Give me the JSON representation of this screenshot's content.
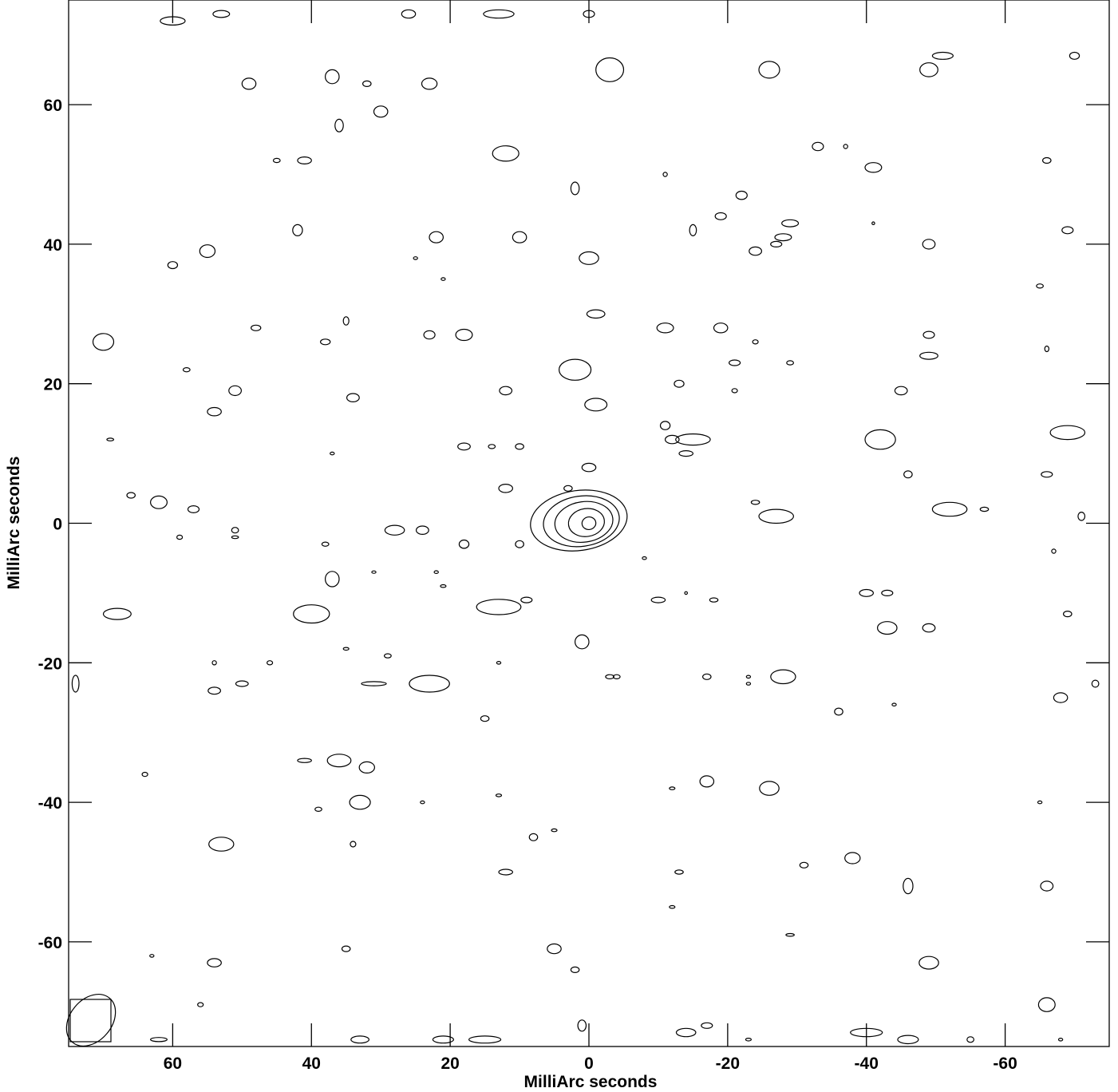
{
  "chart_data": {
    "type": "contour",
    "title": "",
    "xlabel": "MilliArc seconds",
    "ylabel": "MilliArc seconds",
    "xlim": [
      75,
      -75
    ],
    "ylim": [
      -75,
      75
    ],
    "x_ticks": [
      60,
      40,
      20,
      0,
      -20,
      -40,
      -60
    ],
    "y_ticks": [
      60,
      40,
      20,
      0,
      -20,
      -40,
      -60
    ],
    "x_tick_labels": [
      "60",
      "40",
      "20",
      "0",
      "-20",
      "-40",
      "-60"
    ],
    "y_tick_labels": [
      "60",
      "40",
      "20",
      "0",
      "-20",
      "-40",
      "-60"
    ],
    "grid": false,
    "core": {
      "x": 0,
      "y": 0,
      "contours": [
        {
          "rx": 1.0,
          "ry": 0.9
        },
        {
          "rx": 2.6,
          "ry": 2.0
        },
        {
          "rx": 4.2,
          "ry": 2.9
        },
        {
          "rx": 5.5,
          "ry": 3.6
        },
        {
          "rx": 7.0,
          "ry": 4.3
        }
      ]
    },
    "beam": {
      "major": 5.5,
      "minor": 3.0,
      "pa_deg": 40
    },
    "noise_contours": [
      [
        60,
        72,
        1.8,
        0.6
      ],
      [
        53,
        73,
        1.2,
        0.5
      ],
      [
        26,
        73,
        1.0,
        0.6
      ],
      [
        13,
        73,
        2.2,
        0.6
      ],
      [
        0,
        73,
        0.8,
        0.5
      ],
      [
        -3,
        65,
        2.0,
        1.7
      ],
      [
        49,
        63,
        1.0,
        0.8
      ],
      [
        37,
        64,
        1.0,
        1.0
      ],
      [
        32,
        63,
        0.6,
        0.4
      ],
      [
        23,
        63,
        1.1,
        0.8
      ],
      [
        -26,
        65,
        1.5,
        1.2
      ],
      [
        -49,
        65,
        1.3,
        1.0
      ],
      [
        -51,
        67,
        1.5,
        0.5
      ],
      [
        -70,
        67,
        0.7,
        0.5
      ],
      [
        30,
        59,
        1.0,
        0.8
      ],
      [
        36,
        57,
        0.6,
        0.9
      ],
      [
        12,
        53,
        1.9,
        1.1
      ],
      [
        45,
        52,
        0.5,
        0.3
      ],
      [
        41,
        52,
        1.0,
        0.5
      ],
      [
        -11,
        50,
        0.3,
        0.3
      ],
      [
        -41,
        51,
        1.2,
        0.7
      ],
      [
        -66,
        52,
        0.6,
        0.4
      ],
      [
        2,
        48,
        0.6,
        0.9
      ],
      [
        -22,
        47,
        0.8,
        0.6
      ],
      [
        -37,
        54,
        0.3,
        0.3
      ],
      [
        -33,
        54,
        0.8,
        0.6
      ],
      [
        42,
        42,
        0.7,
        0.8
      ],
      [
        22,
        41,
        1.0,
        0.8
      ],
      [
        10,
        41,
        1.0,
        0.8
      ],
      [
        -15,
        42,
        0.5,
        0.8
      ],
      [
        -19,
        44,
        0.8,
        0.5
      ],
      [
        -29,
        43,
        1.2,
        0.5
      ],
      [
        -28,
        41,
        1.2,
        0.5
      ],
      [
        -27,
        40,
        0.8,
        0.4
      ],
      [
        55,
        39,
        1.1,
        0.9
      ],
      [
        -24,
        39,
        0.9,
        0.6
      ],
      [
        -49,
        40,
        0.9,
        0.7
      ],
      [
        -69,
        42,
        0.8,
        0.5
      ],
      [
        0,
        38,
        1.4,
        0.9
      ],
      [
        60,
        37,
        0.7,
        0.5
      ],
      [
        25,
        38,
        0.3,
        0.2
      ],
      [
        -41,
        43,
        0.2,
        0.2
      ],
      [
        -65,
        34,
        0.5,
        0.3
      ],
      [
        21,
        35,
        0.3,
        0.2
      ],
      [
        35,
        29,
        0.4,
        0.6
      ],
      [
        -1,
        30,
        1.3,
        0.6
      ],
      [
        48,
        28,
        0.7,
        0.4
      ],
      [
        -11,
        28,
        1.2,
        0.7
      ],
      [
        -19,
        28,
        1.0,
        0.7
      ],
      [
        18,
        27,
        1.2,
        0.8
      ],
      [
        23,
        27,
        0.8,
        0.6
      ],
      [
        -49,
        27,
        0.8,
        0.5
      ],
      [
        70,
        26,
        1.5,
        1.2
      ],
      [
        38,
        26,
        0.7,
        0.4
      ],
      [
        -24,
        26,
        0.4,
        0.3
      ],
      [
        -49,
        24,
        1.3,
        0.5
      ],
      [
        -66,
        25,
        0.3,
        0.4
      ],
      [
        -29,
        23,
        0.5,
        0.3
      ],
      [
        -21,
        23,
        0.8,
        0.4
      ],
      [
        2,
        22,
        2.3,
        1.5
      ],
      [
        58,
        22,
        0.5,
        0.3
      ],
      [
        51,
        19,
        0.9,
        0.7
      ],
      [
        54,
        16,
        1.0,
        0.6
      ],
      [
        34,
        18,
        0.9,
        0.6
      ],
      [
        12,
        19,
        0.9,
        0.6
      ],
      [
        -13,
        20,
        0.7,
        0.5
      ],
      [
        -21,
        19,
        0.4,
        0.3
      ],
      [
        -45,
        19,
        0.9,
        0.6
      ],
      [
        -1,
        17,
        1.6,
        0.9
      ],
      [
        -11,
        14,
        0.7,
        0.6
      ],
      [
        -15,
        12,
        2.5,
        0.8
      ],
      [
        -12,
        12,
        1.0,
        0.6
      ],
      [
        -42,
        12,
        2.2,
        1.4
      ],
      [
        -69,
        13,
        2.5,
        1.0
      ],
      [
        69,
        12,
        0.5,
        0.2
      ],
      [
        37,
        10,
        0.3,
        0.2
      ],
      [
        18,
        11,
        0.9,
        0.5
      ],
      [
        14,
        11,
        0.5,
        0.3
      ],
      [
        10,
        11,
        0.6,
        0.4
      ],
      [
        0,
        8,
        1.0,
        0.6
      ],
      [
        -14,
        10,
        1.0,
        0.4
      ],
      [
        -46,
        7,
        0.6,
        0.5
      ],
      [
        -66,
        7,
        0.8,
        0.4
      ],
      [
        12,
        5,
        1.0,
        0.6
      ],
      [
        3,
        5,
        0.6,
        0.4
      ],
      [
        -24,
        3,
        0.6,
        0.3
      ],
      [
        66,
        4,
        0.6,
        0.4
      ],
      [
        62,
        3,
        1.2,
        0.9
      ],
      [
        57,
        2,
        0.8,
        0.5
      ],
      [
        -27,
        1,
        2.5,
        1.0
      ],
      [
        -52,
        2,
        2.5,
        1.0
      ],
      [
        -57,
        2,
        0.6,
        0.3
      ],
      [
        -71,
        1,
        0.5,
        0.6
      ],
      [
        28,
        -1,
        1.4,
        0.7
      ],
      [
        24,
        -1,
        0.9,
        0.6
      ],
      [
        51,
        -1,
        0.5,
        0.4
      ],
      [
        51,
        -2,
        0.5,
        0.2
      ],
      [
        59,
        -2,
        0.4,
        0.3
      ],
      [
        18,
        -3,
        0.7,
        0.6
      ],
      [
        10,
        -3,
        0.6,
        0.5
      ],
      [
        38,
        -3,
        0.5,
        0.3
      ],
      [
        -67,
        -4,
        0.3,
        0.3
      ],
      [
        37,
        -8,
        1.0,
        1.1
      ],
      [
        31,
        -7,
        0.3,
        0.1
      ],
      [
        22,
        -7,
        0.3,
        0.2
      ],
      [
        21,
        -9,
        0.4,
        0.2
      ],
      [
        -8,
        -5,
        0.3,
        0.2
      ],
      [
        13,
        -12,
        3.2,
        1.1
      ],
      [
        9,
        -11,
        0.8,
        0.4
      ],
      [
        -10,
        -11,
        1.0,
        0.4
      ],
      [
        -14,
        -10,
        0.2,
        0.2
      ],
      [
        -18,
        -11,
        0.6,
        0.3
      ],
      [
        -40,
        -10,
        1.0,
        0.5
      ],
      [
        -43,
        -10,
        0.8,
        0.4
      ],
      [
        40,
        -13,
        2.6,
        1.3
      ],
      [
        68,
        -13,
        2.0,
        0.8
      ],
      [
        -43,
        -15,
        1.4,
        0.9
      ],
      [
        -49,
        -15,
        0.9,
        0.6
      ],
      [
        -69,
        -13,
        0.6,
        0.4
      ],
      [
        1,
        -17,
        1.0,
        1.0
      ],
      [
        35,
        -18,
        0.4,
        0.2
      ],
      [
        29,
        -19,
        0.5,
        0.3
      ],
      [
        13,
        -20,
        0.3,
        0.2
      ],
      [
        46,
        -20,
        0.4,
        0.3
      ],
      [
        54,
        -20,
        0.3,
        0.3
      ],
      [
        -28,
        -22,
        1.8,
        1.0
      ],
      [
        -17,
        -22,
        0.6,
        0.4
      ],
      [
        -23,
        -22,
        0.3,
        0.2
      ],
      [
        -23,
        -23,
        0.3,
        0.2
      ],
      [
        -3,
        -22,
        0.6,
        0.3
      ],
      [
        -4,
        -22,
        0.5,
        0.3
      ],
      [
        31,
        -23,
        1.8,
        0.3
      ],
      [
        23,
        -23,
        2.9,
        1.2
      ],
      [
        50,
        -23,
        0.9,
        0.4
      ],
      [
        54,
        -24,
        0.9,
        0.5
      ],
      [
        -68,
        -25,
        1.0,
        0.7
      ],
      [
        -73,
        -23,
        0.5,
        0.5
      ],
      [
        74,
        -23,
        0.5,
        1.2
      ],
      [
        -36,
        -27,
        0.6,
        0.5
      ],
      [
        -44,
        -26,
        0.3,
        0.2
      ],
      [
        15,
        -28,
        0.6,
        0.4
      ],
      [
        36,
        -34,
        1.7,
        0.9
      ],
      [
        41,
        -34,
        1.0,
        0.3
      ],
      [
        32,
        -35,
        1.1,
        0.8
      ],
      [
        64,
        -36,
        0.4,
        0.3
      ],
      [
        -17,
        -37,
        1.0,
        0.8
      ],
      [
        -12,
        -38,
        0.4,
        0.2
      ],
      [
        -26,
        -38,
        1.4,
        1.0
      ],
      [
        33,
        -40,
        1.5,
        1.0
      ],
      [
        13,
        -39,
        0.4,
        0.2
      ],
      [
        24,
        -40,
        0.3,
        0.2
      ],
      [
        -65,
        -40,
        0.3,
        0.2
      ],
      [
        39,
        -41,
        0.5,
        0.3
      ],
      [
        8,
        -45,
        0.6,
        0.5
      ],
      [
        5,
        -44,
        0.4,
        0.2
      ],
      [
        34,
        -46,
        0.4,
        0.4
      ],
      [
        53,
        -46,
        1.8,
        1.0
      ],
      [
        -38,
        -48,
        1.1,
        0.8
      ],
      [
        -31,
        -49,
        0.6,
        0.4
      ],
      [
        12,
        -50,
        1.0,
        0.4
      ],
      [
        -13,
        -50,
        0.6,
        0.3
      ],
      [
        -46,
        -52,
        0.7,
        1.1
      ],
      [
        -66,
        -52,
        0.9,
        0.7
      ],
      [
        -12,
        -55,
        0.4,
        0.2
      ],
      [
        -29,
        -59,
        0.6,
        0.2
      ],
      [
        5,
        -61,
        1.0,
        0.7
      ],
      [
        35,
        -61,
        0.6,
        0.4
      ],
      [
        54,
        -63,
        1.0,
        0.6
      ],
      [
        -49,
        -63,
        1.4,
        0.9
      ],
      [
        63,
        -62,
        0.3,
        0.2
      ],
      [
        2,
        -64,
        0.6,
        0.4
      ],
      [
        -66,
        -69,
        1.2,
        1.0
      ],
      [
        56,
        -69,
        0.4,
        0.3
      ],
      [
        -14,
        -73,
        1.4,
        0.6
      ],
      [
        -17,
        -72,
        0.8,
        0.4
      ],
      [
        -40,
        -73,
        2.3,
        0.6
      ],
      [
        -46,
        -74,
        1.5,
        0.6
      ],
      [
        -55,
        -74,
        0.5,
        0.4
      ],
      [
        62,
        -74,
        1.2,
        0.3
      ],
      [
        33,
        -74,
        1.3,
        0.5
      ],
      [
        15,
        -74,
        2.3,
        0.5
      ],
      [
        21,
        -74,
        1.5,
        0.5
      ],
      [
        1,
        -72,
        0.6,
        0.8
      ],
      [
        -68,
        -74,
        0.3,
        0.2
      ],
      [
        -23,
        -74,
        0.4,
        0.2
      ]
    ]
  }
}
